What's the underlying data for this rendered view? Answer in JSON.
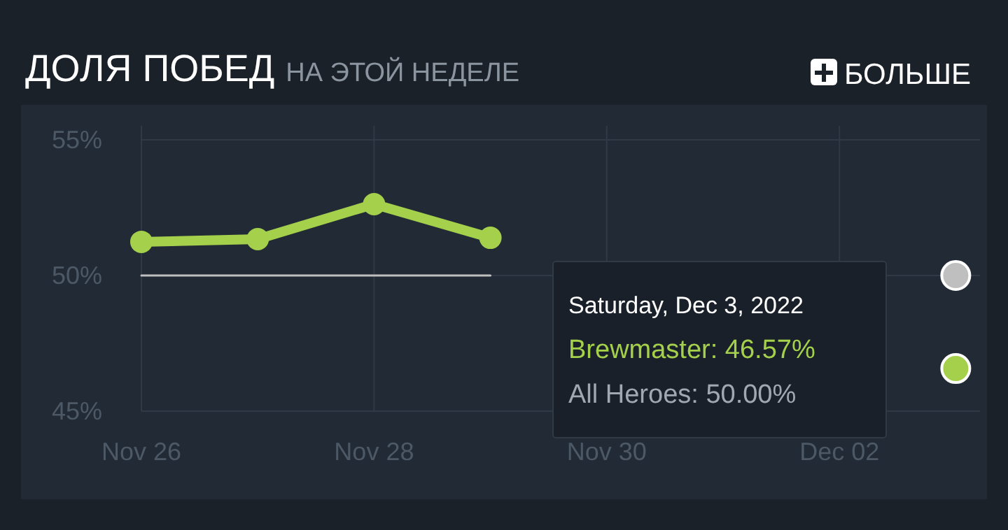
{
  "chart_data": {
    "type": "line",
    "title": "ДОЛЯ ПОБЕД",
    "subtitle": "НА ЭТОЙ НЕДЕЛЕ",
    "x": [
      "2022-11-26",
      "2022-11-27",
      "2022-11-28",
      "2022-11-29",
      "2022-11-30",
      "2022-12-01",
      "2022-12-02",
      "2022-12-03"
    ],
    "series": [
      {
        "color": "#bfbfbf",
        "values": [
          50,
          50,
          50,
          50,
          null,
          null,
          null,
          50
        ],
        "marker": "none"
      },
      {
        "color": "#a4d04b",
        "values": [
          51.24,
          51.34,
          52.63,
          51.39,
          null,
          null,
          null,
          46.57
        ],
        "marker": "circle"
      }
    ],
    "xlim": [
      "2022-11-26",
      "2022-12-03T05:00"
    ],
    "xticks": [
      {
        "value": "2022-11-26",
        "label": "Nov 26"
      },
      {
        "value": "2022-11-28",
        "label": "Nov 28"
      },
      {
        "value": "2022-11-30",
        "label": "Nov 30"
      },
      {
        "value": "2022-12-02",
        "label": "Dec 02"
      }
    ],
    "ylim": [
      45,
      55
    ],
    "yticks": [
      {
        "value": 45,
        "label": "45%"
      },
      {
        "value": 50,
        "label": "50%"
      },
      {
        "value": 55,
        "label": "55%"
      }
    ],
    "grid": true,
    "annotations": [
      "БОЛЬШЕ",
      "Saturday, Dec 3, 2022",
      "Brewmaster: 46.57%",
      "All Heroes: 50.00%"
    ]
  }
}
